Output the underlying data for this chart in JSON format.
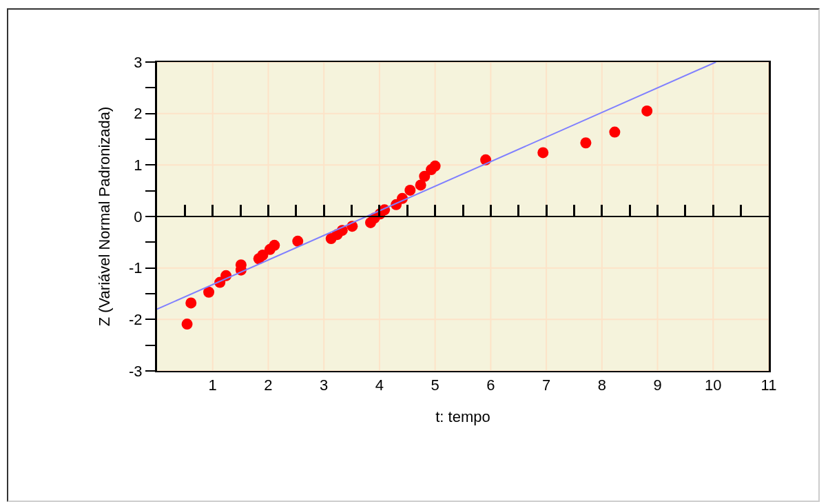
{
  "chart_data": {
    "type": "scatter",
    "xlabel": "t: tempo",
    "ylabel": "Z (Variável Normal Padronizada)",
    "xlim": [
      0,
      11
    ],
    "ylim": [
      -3,
      3
    ],
    "xticks": [
      {
        "value": 0.5,
        "label": null
      },
      1,
      {
        "value": 1.5,
        "label": null
      },
      2,
      {
        "value": 2.5,
        "label": null
      },
      3,
      {
        "value": 3.5,
        "label": null
      },
      4,
      {
        "value": 4.5,
        "label": null
      },
      5,
      {
        "value": 5.5,
        "label": null
      },
      6,
      {
        "value": 6.5,
        "label": null
      },
      7,
      {
        "value": 7.5,
        "label": null
      },
      8,
      {
        "value": 8.5,
        "label": null
      },
      9,
      {
        "value": 9.5,
        "label": null
      },
      10,
      {
        "value": 10.5,
        "label": null
      },
      11
    ],
    "yticks": [
      -3,
      {
        "value": -2.5,
        "label": null
      },
      -2,
      {
        "value": -1.5,
        "label": null
      },
      -1,
      {
        "value": -0.5,
        "label": null
      },
      0,
      {
        "value": 0.5,
        "label": null
      },
      1,
      {
        "value": 1.5,
        "label": null
      },
      2,
      {
        "value": 2.5,
        "label": null
      },
      3
    ],
    "grid": true,
    "series": [
      {
        "marker": "circle",
        "color": "#ff0000",
        "x": [
          0.54,
          0.61,
          0.93,
          1.13,
          1.24,
          1.51,
          1.51,
          1.83,
          1.9,
          2.03,
          2.11,
          2.53,
          3.13,
          3.24,
          3.33,
          3.51,
          3.84,
          3.91,
          4.01,
          4.09,
          4.3,
          4.41,
          4.55,
          4.74,
          4.81,
          4.93,
          5.0,
          5.91,
          6.94,
          7.71,
          8.23,
          8.81
        ],
        "values": [
          -2.09,
          -1.68,
          -1.47,
          -1.28,
          -1.15,
          -1.04,
          -0.94,
          -0.82,
          -0.75,
          -0.64,
          -0.56,
          -0.48,
          -0.43,
          -0.35,
          -0.27,
          -0.19,
          -0.12,
          -0.03,
          0.05,
          0.13,
          0.23,
          0.35,
          0.51,
          0.61,
          0.78,
          0.91,
          0.98,
          1.1,
          1.24,
          1.43,
          1.64,
          2.05
        ]
      },
      {
        "type": "line",
        "color": "#7f7fff",
        "line_style": "solid",
        "x": [
          0,
          10.05
        ],
        "values": [
          -1.8,
          3
        ]
      }
    ]
  }
}
